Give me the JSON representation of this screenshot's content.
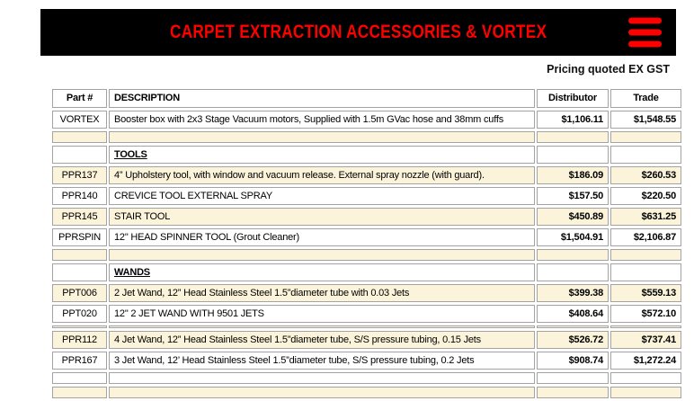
{
  "banner": {
    "title": "CARPET EXTRACTION ACCESSORIES & VORTEX",
    "menu_icon": "hamburger-icon",
    "bar_color": "#000000",
    "accent_red": "#fe0000"
  },
  "pricing_note": "Pricing quoted EX GST",
  "table": {
    "columns": [
      "Part #",
      "DESCRIPTION",
      "Distributor",
      "Trade"
    ],
    "highlight_color": "#fbf4da",
    "border_color": "#a3a3a3",
    "rows": [
      {
        "type": "item",
        "part": "VORTEX",
        "description": "Booster box with 2x3 Stage Vacuum motors, Supplied with 1.5m GVac hose and 38mm cuffs",
        "distributor": "$1,106.11",
        "trade": "$1,548.55",
        "highlight": false
      },
      {
        "type": "blank",
        "highlight": true
      },
      {
        "type": "section",
        "description": "TOOLS",
        "highlight": false
      },
      {
        "type": "item",
        "part": "PPR137",
        "description": "4” Upholstery tool, with window and vacuum release. External spray nozzle (with guard).",
        "distributor": "$186.09",
        "trade": "$260.53",
        "highlight": true
      },
      {
        "type": "item",
        "part": "PPR140",
        "description": "CREVICE TOOL EXTERNAL SPRAY",
        "distributor": "$157.50",
        "trade": "$220.50",
        "highlight": false
      },
      {
        "type": "item",
        "part": "PPR145",
        "description": "STAIR TOOL",
        "distributor": "$450.89",
        "trade": "$631.25",
        "highlight": true
      },
      {
        "type": "item",
        "part": "PPRSPIN",
        "description": "12\" HEAD SPINNER TOOL (Grout Cleaner)",
        "distributor": "$1,504.91",
        "trade": "$2,106.87",
        "highlight": false
      },
      {
        "type": "blank",
        "highlight": true
      },
      {
        "type": "section",
        "description": "WANDS",
        "highlight": false
      },
      {
        "type": "item",
        "part": "PPT006",
        "description": "2 Jet Wand, 12” Head Stainless Steel 1.5”diameter tube with 0.03 Jets",
        "distributor": "$399.38",
        "trade": "$559.13",
        "highlight": true
      },
      {
        "type": "item",
        "part": "PPT020",
        "description": "12\" 2 JET WAND WITH 9501 JETS",
        "distributor": "$408.64",
        "trade": "$572.10",
        "highlight": false
      },
      {
        "type": "spacer",
        "highlight": true
      },
      {
        "type": "item",
        "part": "PPR112",
        "description": "4 Jet Wand, 12” Head Stainless Steel 1.5”diameter tube, S/S pressure tubing, 0.15 Jets",
        "distributor": "$526.72",
        "trade": "$737.41",
        "highlight": true
      },
      {
        "type": "item",
        "part": "PPR167",
        "description": "3 Jet Wand, 12’ Head Stainless Steel 1.5”diameter tube, S/S pressure tubing, 0.2 Jets",
        "distributor": "$908.74",
        "trade": "$1,272.24",
        "highlight": false
      },
      {
        "type": "blank",
        "highlight": false
      },
      {
        "type": "blank",
        "highlight": true
      }
    ]
  }
}
